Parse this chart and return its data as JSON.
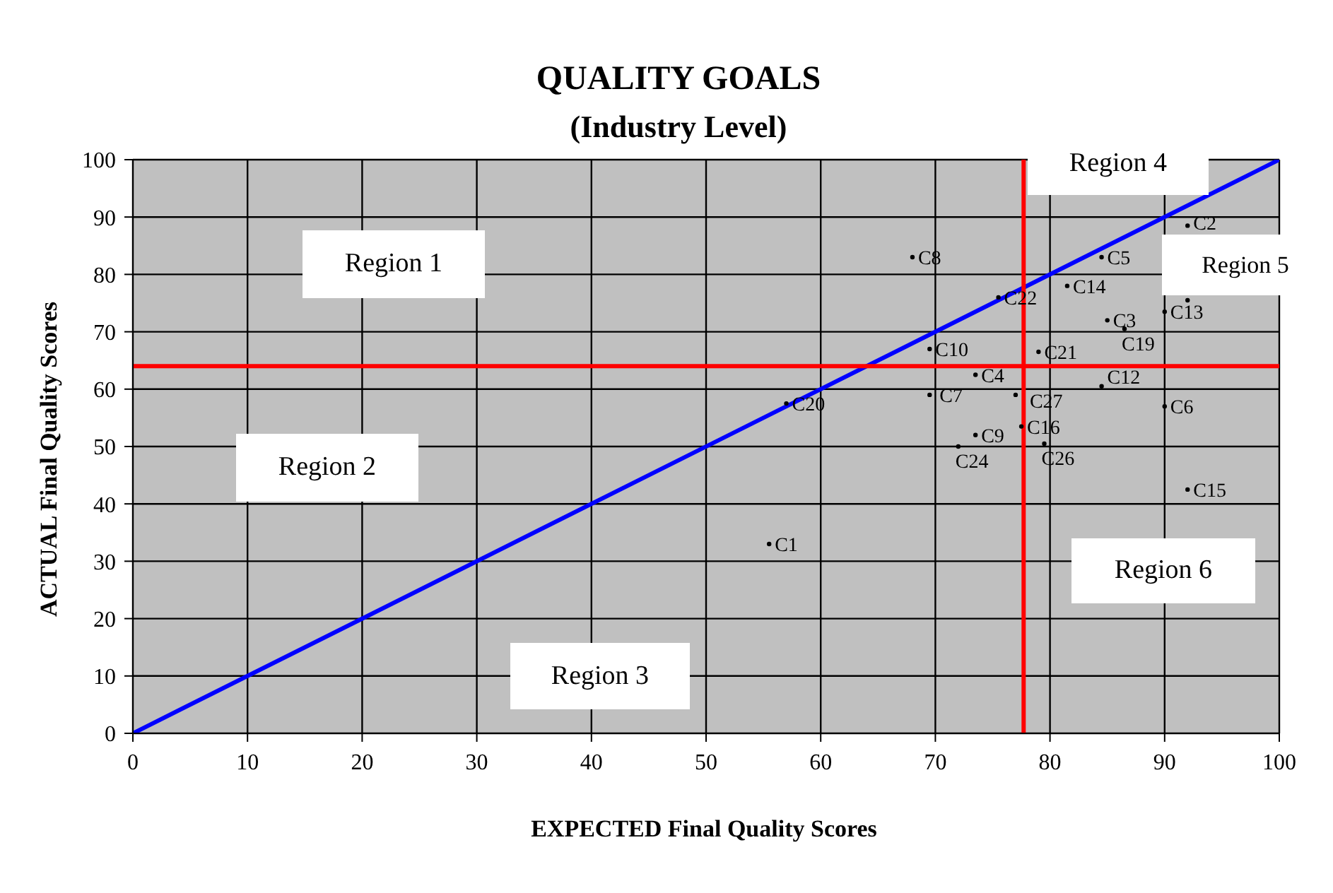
{
  "chart_data": {
    "type": "scatter",
    "title": "QUALITY GOALS",
    "subtitle": "(Industry Level)",
    "xlabel": "EXPECTED Final Quality Scores",
    "ylabel": "ACTUAL Final Quality Scores",
    "xlim": [
      0,
      100
    ],
    "ylim": [
      0,
      100
    ],
    "xticks": [
      0,
      10,
      20,
      30,
      40,
      50,
      60,
      70,
      80,
      90,
      100
    ],
    "yticks": [
      0,
      10,
      20,
      30,
      40,
      50,
      60,
      70,
      80,
      90,
      100
    ],
    "grid": true,
    "marker": "circle",
    "series": [
      {
        "type": "scatter",
        "color": "#000000",
        "x": [
          55.5,
          92,
          85,
          73.5,
          84.5,
          90,
          69.5,
          68,
          73.5,
          69.5,
          84.5,
          90,
          81.5,
          92,
          77.5,
          86.5,
          57,
          79,
          75.5,
          72,
          79.5,
          77,
          92
        ],
        "values": [
          33,
          88.5,
          72,
          62.5,
          83,
          57,
          59,
          83,
          52,
          67,
          60.5,
          73.5,
          78,
          42.5,
          53.5,
          70.5,
          57.5,
          66.5,
          76,
          50,
          50.5,
          59,
          75.5
        ],
        "value_labels": [
          "C1",
          "C2",
          "C3",
          "C4",
          "C5",
          "C6",
          "C7",
          "C8",
          "C9",
          "C10",
          "C12",
          "C13",
          "C14",
          "C15",
          "C16",
          "C19",
          "C20",
          "C21",
          "C22",
          "C24",
          "C26",
          "C27",
          null
        ]
      },
      {
        "type": "line",
        "color": "#0000ff",
        "x": [
          0,
          100
        ],
        "values": [
          0,
          100
        ],
        "line_style": "solid",
        "marker": "none"
      }
    ],
    "ref_lines": [
      {
        "axis": "x",
        "value": 77.7,
        "color": "#ff0000"
      },
      {
        "axis": "y",
        "value": 64,
        "color": "#ff0000"
      }
    ],
    "annotations": [
      "Region 1",
      "Region 2",
      "Region 3",
      "Region 4",
      "Region 5",
      "Region 6"
    ]
  }
}
